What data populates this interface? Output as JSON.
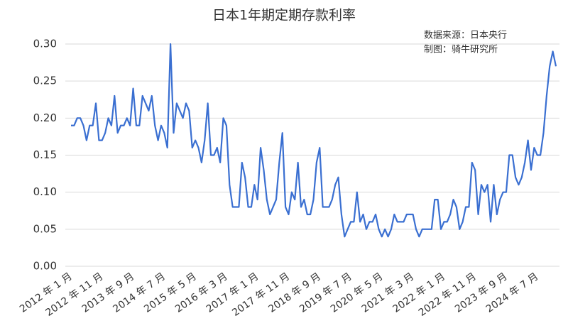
{
  "chart_data": {
    "type": "line",
    "title": "日本1年期定期存款利率",
    "annotations": [
      "数据来源：日本央行",
      "制图：骑牛研究所"
    ],
    "categories": [
      "2012 年 1 月",
      null,
      null,
      null,
      null,
      null,
      null,
      null,
      null,
      null,
      "2012 年 11 月",
      null,
      null,
      null,
      null,
      null,
      null,
      null,
      null,
      null,
      "2013 年 9 月",
      null,
      null,
      null,
      null,
      null,
      null,
      null,
      null,
      null,
      "2014 年 7 月",
      null,
      null,
      null,
      null,
      null,
      null,
      null,
      null,
      null,
      "2015 年 5 月",
      null,
      null,
      null,
      null,
      null,
      null,
      null,
      null,
      null,
      "2016 年 3 月",
      null,
      null,
      null,
      null,
      null,
      null,
      null,
      null,
      null,
      "2017 年 1 月",
      null,
      null,
      null,
      null,
      null,
      null,
      null,
      null,
      null,
      "2017 年 11 月",
      null,
      null,
      null,
      null,
      null,
      null,
      null,
      null,
      null,
      "2018 年 9 月",
      null,
      null,
      null,
      null,
      null,
      null,
      null,
      null,
      null,
      "2019 年 7 月",
      null,
      null,
      null,
      null,
      null,
      null,
      null,
      null,
      null,
      "2020 年 5 月",
      null,
      null,
      null,
      null,
      null,
      null,
      null,
      null,
      null,
      "2021 年 3 月",
      null,
      null,
      null,
      null,
      null,
      null,
      null,
      null,
      null,
      "2022 年 1 月",
      null,
      null,
      null,
      null,
      null,
      null,
      null,
      null,
      null,
      "2022 年 11 月",
      null,
      null,
      null,
      null,
      null,
      null,
      null,
      null,
      null,
      "2023 年 9 月",
      null,
      null,
      null,
      null,
      null,
      null,
      null,
      null,
      null,
      "2024 年 7 月",
      null,
      null,
      null,
      null,
      null,
      null
    ],
    "values": [
      0.19,
      0.19,
      0.2,
      0.2,
      0.19,
      0.17,
      0.19,
      0.19,
      0.22,
      0.17,
      0.17,
      0.18,
      0.2,
      0.19,
      0.23,
      0.18,
      0.19,
      0.19,
      0.2,
      0.19,
      0.24,
      0.19,
      0.19,
      0.23,
      0.22,
      0.21,
      0.23,
      0.19,
      0.17,
      0.19,
      0.18,
      0.16,
      0.3,
      0.18,
      0.22,
      0.21,
      0.2,
      0.22,
      0.21,
      0.16,
      0.17,
      0.16,
      0.14,
      0.17,
      0.22,
      0.15,
      0.15,
      0.16,
      0.14,
      0.2,
      0.19,
      0.11,
      0.08,
      0.08,
      0.08,
      0.14,
      0.12,
      0.08,
      0.08,
      0.11,
      0.09,
      0.16,
      0.13,
      0.09,
      0.07,
      0.08,
      0.09,
      0.14,
      0.18,
      0.08,
      0.07,
      0.1,
      0.09,
      0.14,
      0.08,
      0.09,
      0.07,
      0.07,
      0.09,
      0.14,
      0.16,
      0.08,
      0.08,
      0.08,
      0.09,
      0.11,
      0.12,
      0.07,
      0.04,
      0.05,
      0.06,
      0.06,
      0.1,
      0.06,
      0.07,
      0.05,
      0.06,
      0.06,
      0.07,
      0.05,
      0.04,
      0.05,
      0.04,
      0.05,
      0.07,
      0.06,
      0.06,
      0.06,
      0.07,
      0.07,
      0.07,
      0.05,
      0.04,
      0.05,
      0.05,
      0.05,
      0.05,
      0.09,
      0.09,
      0.05,
      0.06,
      0.06,
      0.07,
      0.09,
      0.08,
      0.05,
      0.06,
      0.08,
      0.08,
      0.14,
      0.13,
      0.07,
      0.11,
      0.1,
      0.11,
      0.06,
      0.11,
      0.07,
      0.09,
      0.1,
      0.1,
      0.15,
      0.15,
      0.12,
      0.11,
      0.12,
      0.14,
      0.17,
      0.13,
      0.16,
      0.15,
      0.15,
      0.18,
      0.23,
      0.27,
      0.29,
      0.27
    ],
    "color": "#3a6fd1",
    "ylim": [
      0,
      0.3
    ],
    "yticks": [
      {
        "value": 0,
        "label": "0.00"
      },
      {
        "value": 0.05,
        "label": "0.05"
      },
      {
        "value": 0.1,
        "label": "0.10"
      },
      {
        "value": 0.15,
        "label": "0.15"
      },
      {
        "value": 0.2,
        "label": "0.20"
      },
      {
        "value": 0.25,
        "label": "0.25"
      },
      {
        "value": 0.3,
        "label": "0.30"
      }
    ],
    "grid": true
  }
}
